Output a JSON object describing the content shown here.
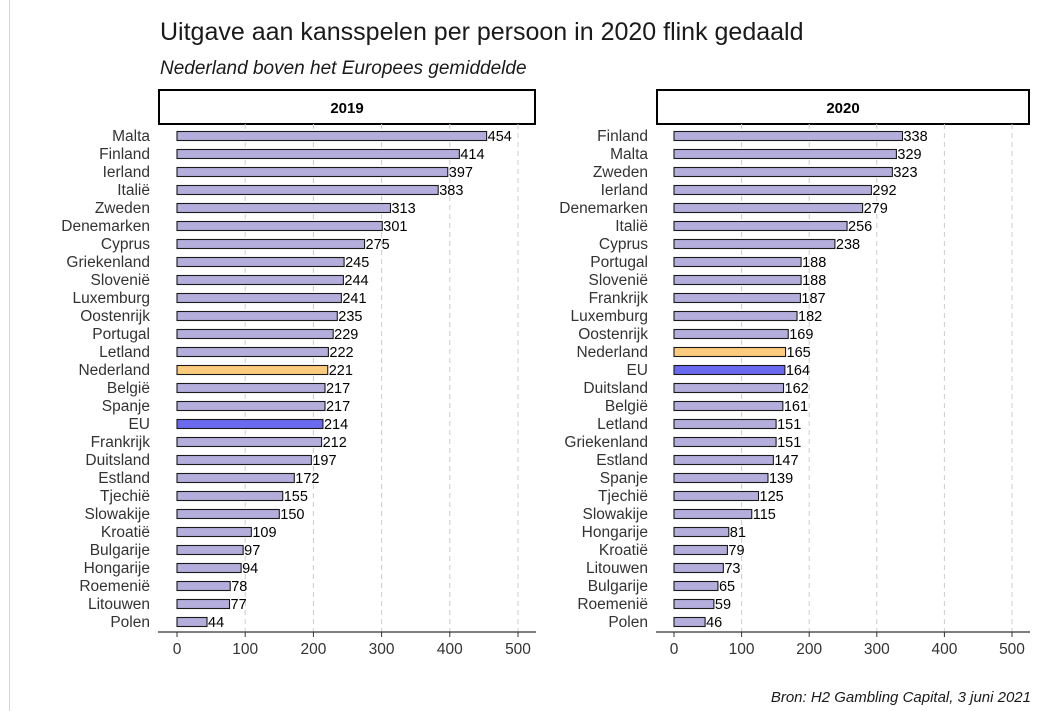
{
  "title": "Uitgave aan kansspelen per persoon in 2020 flink gedaald",
  "subtitle": "Nederland boven het Europees gemiddelde",
  "source": "Bron: H2 Gambling Capital, 3 juni 2021",
  "colors": {
    "bar": "#b3aedb",
    "highlight_nl": "#fdcb7e",
    "highlight_eu": "#6a6af0",
    "grid": "#cccccc",
    "axis": "#333333"
  },
  "chart_data": [
    {
      "type": "bar",
      "orientation": "horizontal",
      "panel": "2019",
      "xlim": [
        0,
        520
      ],
      "xticks": [
        0,
        100,
        200,
        300,
        400,
        500
      ],
      "categories": [
        "Malta",
        "Finland",
        "Ierland",
        "Italië",
        "Zweden",
        "Denemarken",
        "Cyprus",
        "Griekenland",
        "Slovenië",
        "Luxemburg",
        "Oostenrijk",
        "Portugal",
        "Letland",
        "Nederland",
        "België",
        "Spanje",
        "EU",
        "Frankrijk",
        "Duitsland",
        "Estland",
        "Tjechië",
        "Slowakije",
        "Kroatië",
        "Bulgarije",
        "Hongarije",
        "Roemenië",
        "Litouwen",
        "Polen"
      ],
      "values": [
        454,
        414,
        397,
        383,
        313,
        301,
        275,
        245,
        244,
        241,
        235,
        229,
        222,
        221,
        217,
        217,
        214,
        212,
        197,
        172,
        155,
        150,
        109,
        97,
        94,
        78,
        77,
        44
      ],
      "value_labels": [
        "454",
        "414",
        "397",
        "383",
        "313",
        "301",
        "275",
        "245",
        "244",
        "241",
        "235",
        "229",
        "222",
        "221",
        "217",
        "217",
        "214",
        "212",
        "197",
        "172",
        "155",
        "150",
        "109",
        "97",
        "94",
        "78",
        "77",
        "44"
      ],
      "grid": "vertical dashed"
    },
    {
      "type": "bar",
      "orientation": "horizontal",
      "panel": "2020",
      "xlim": [
        0,
        520
      ],
      "xticks": [
        0,
        100,
        200,
        300,
        400,
        500
      ],
      "categories": [
        "Finland",
        "Malta",
        "Zweden",
        "Ierland",
        "Denemarken",
        "Italië",
        "Cyprus",
        "Portugal",
        "Slovenië",
        "Frankrijk",
        "Luxemburg",
        "Oostenrijk",
        "Nederland",
        "EU",
        "Duitsland",
        "België",
        "Letland",
        "Griekenland",
        "Estland",
        "Spanje",
        "Tjechië",
        "Slowakije",
        "Hongarije",
        "Kroatië",
        "Litouwen",
        "Bulgarije",
        "Roemenië",
        "Polen"
      ],
      "values": [
        338,
        329,
        323,
        292,
        279,
        256,
        238,
        188,
        188,
        187,
        182,
        169,
        165,
        164,
        162,
        161,
        151,
        151,
        147,
        139,
        125,
        115,
        81,
        79,
        73,
        65,
        59,
        46
      ],
      "value_labels": [
        "338",
        "329",
        "323",
        "292",
        "279",
        "256",
        "238",
        "188",
        "188",
        "187",
        "182",
        "169",
        "165",
        "164",
        "162",
        "161",
        "151",
        "151",
        "147",
        "139",
        "125",
        "115",
        "81",
        "79",
        "73",
        "65",
        "59",
        "46"
      ],
      "grid": "vertical dashed"
    }
  ]
}
